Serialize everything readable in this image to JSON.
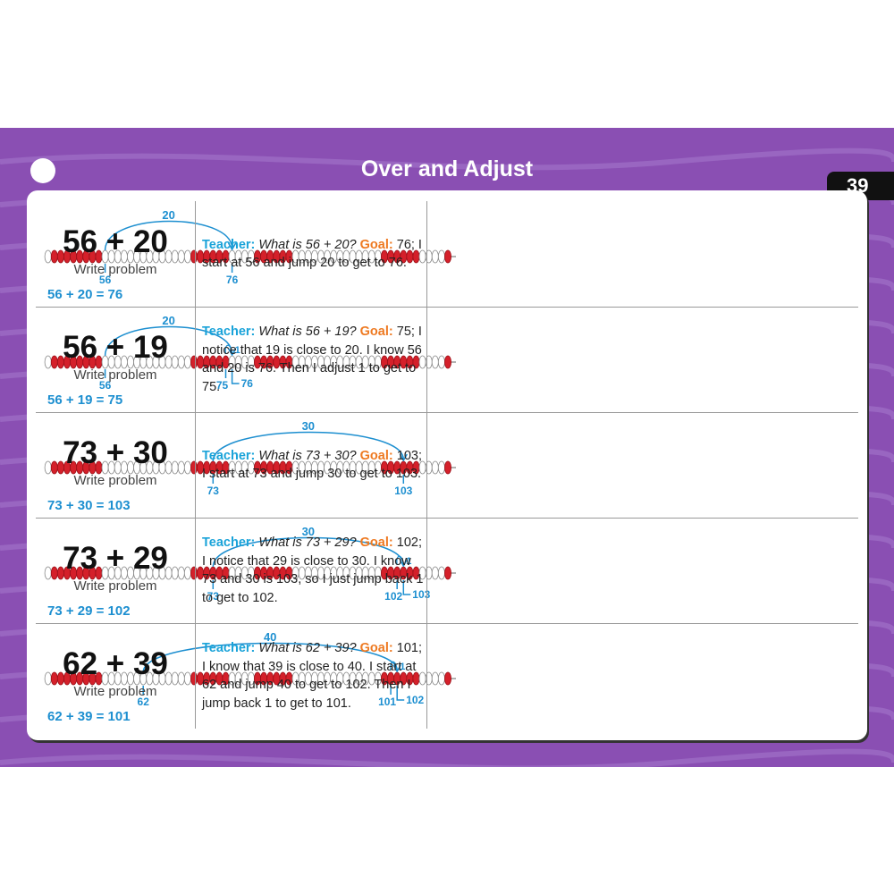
{
  "header": {
    "title": "Over and Adjust",
    "page": "39"
  },
  "rows": [
    {
      "problem": "56 + 20",
      "caption": "Write problem",
      "speaker": "Teacher:",
      "question": "What is 56 + 20?",
      "goal_label": "Goal:",
      "text": "76; I start at 56 and jump 20 to get to 76.",
      "diagram": {
        "start": 56,
        "jump": 20,
        "end": 76,
        "equation": "56 + 20 = 76"
      }
    },
    {
      "problem": "56 + 19",
      "caption": "Write problem",
      "speaker": "Teacher:",
      "question": "What is 56 + 19?",
      "goal_label": "Goal:",
      "text": "75; I notice that 19 is close to 20. I know 56 and 20 is 76. Then I adjust 1 to get to 75.",
      "diagram": {
        "start": 56,
        "jump": 20,
        "over": 76,
        "back": 1,
        "end": 75,
        "equation": "56 + 19 = 75"
      }
    },
    {
      "problem": "73 + 30",
      "caption": "Write problem",
      "speaker": "Teacher:",
      "question": "What is 73 + 30?",
      "goal_label": "Goal:",
      "text": "103; I start at 73 and jump 30 to get to 103.",
      "diagram": {
        "start": 73,
        "jump": 30,
        "end": 103,
        "equation": "73 + 30 = 103"
      }
    },
    {
      "problem": "73 + 29",
      "caption": "Write problem",
      "speaker": "Teacher:",
      "question": "What is 73 + 29?",
      "goal_label": "Goal:",
      "text": "102; I notice that 29 is close to 30. I know 73 and 30 is 103, so I just jump back 1 to get to 102.",
      "diagram": {
        "start": 73,
        "jump": 30,
        "over": 103,
        "back": 1,
        "end": 102,
        "equation": "73 + 29 = 102"
      }
    },
    {
      "problem": "62 + 39",
      "caption": "Write problem",
      "speaker": "Teacher:",
      "question": "What is 62 + 39?",
      "goal_label": "Goal:",
      "text": "101; I know that 39 is close to 40. I start at 62 and jump 40 to get to 102. Then I jump back 1 to get to 101.",
      "diagram": {
        "start": 62,
        "jump": 40,
        "over": 102,
        "back": 1,
        "end": 101,
        "equation": "62 + 39 = 101"
      }
    }
  ]
}
